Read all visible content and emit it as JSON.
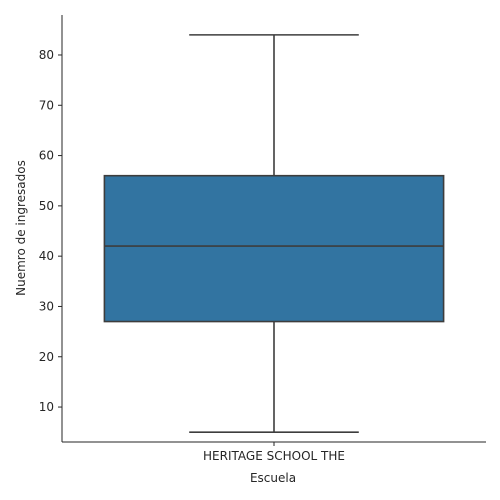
{
  "chart_data": {
    "type": "box",
    "title": "",
    "xlabel": "Escuela",
    "ylabel": "Nuemro de ingresados",
    "categories": [
      "HERITAGE SCHOOL THE"
    ],
    "boxes": [
      {
        "category": "HERITAGE SCHOOL THE",
        "min": 5,
        "q1": 27,
        "median": 42,
        "q3": 56,
        "max": 84
      }
    ],
    "ylim": [
      3.05,
      87.95
    ],
    "yticks": [
      10,
      20,
      30,
      40,
      50,
      60,
      70,
      80
    ],
    "grid": false,
    "legend": "none",
    "colors": {
      "box_fill": "#3274a1",
      "line": "#3d3d3d",
      "axis": "#262626"
    }
  }
}
